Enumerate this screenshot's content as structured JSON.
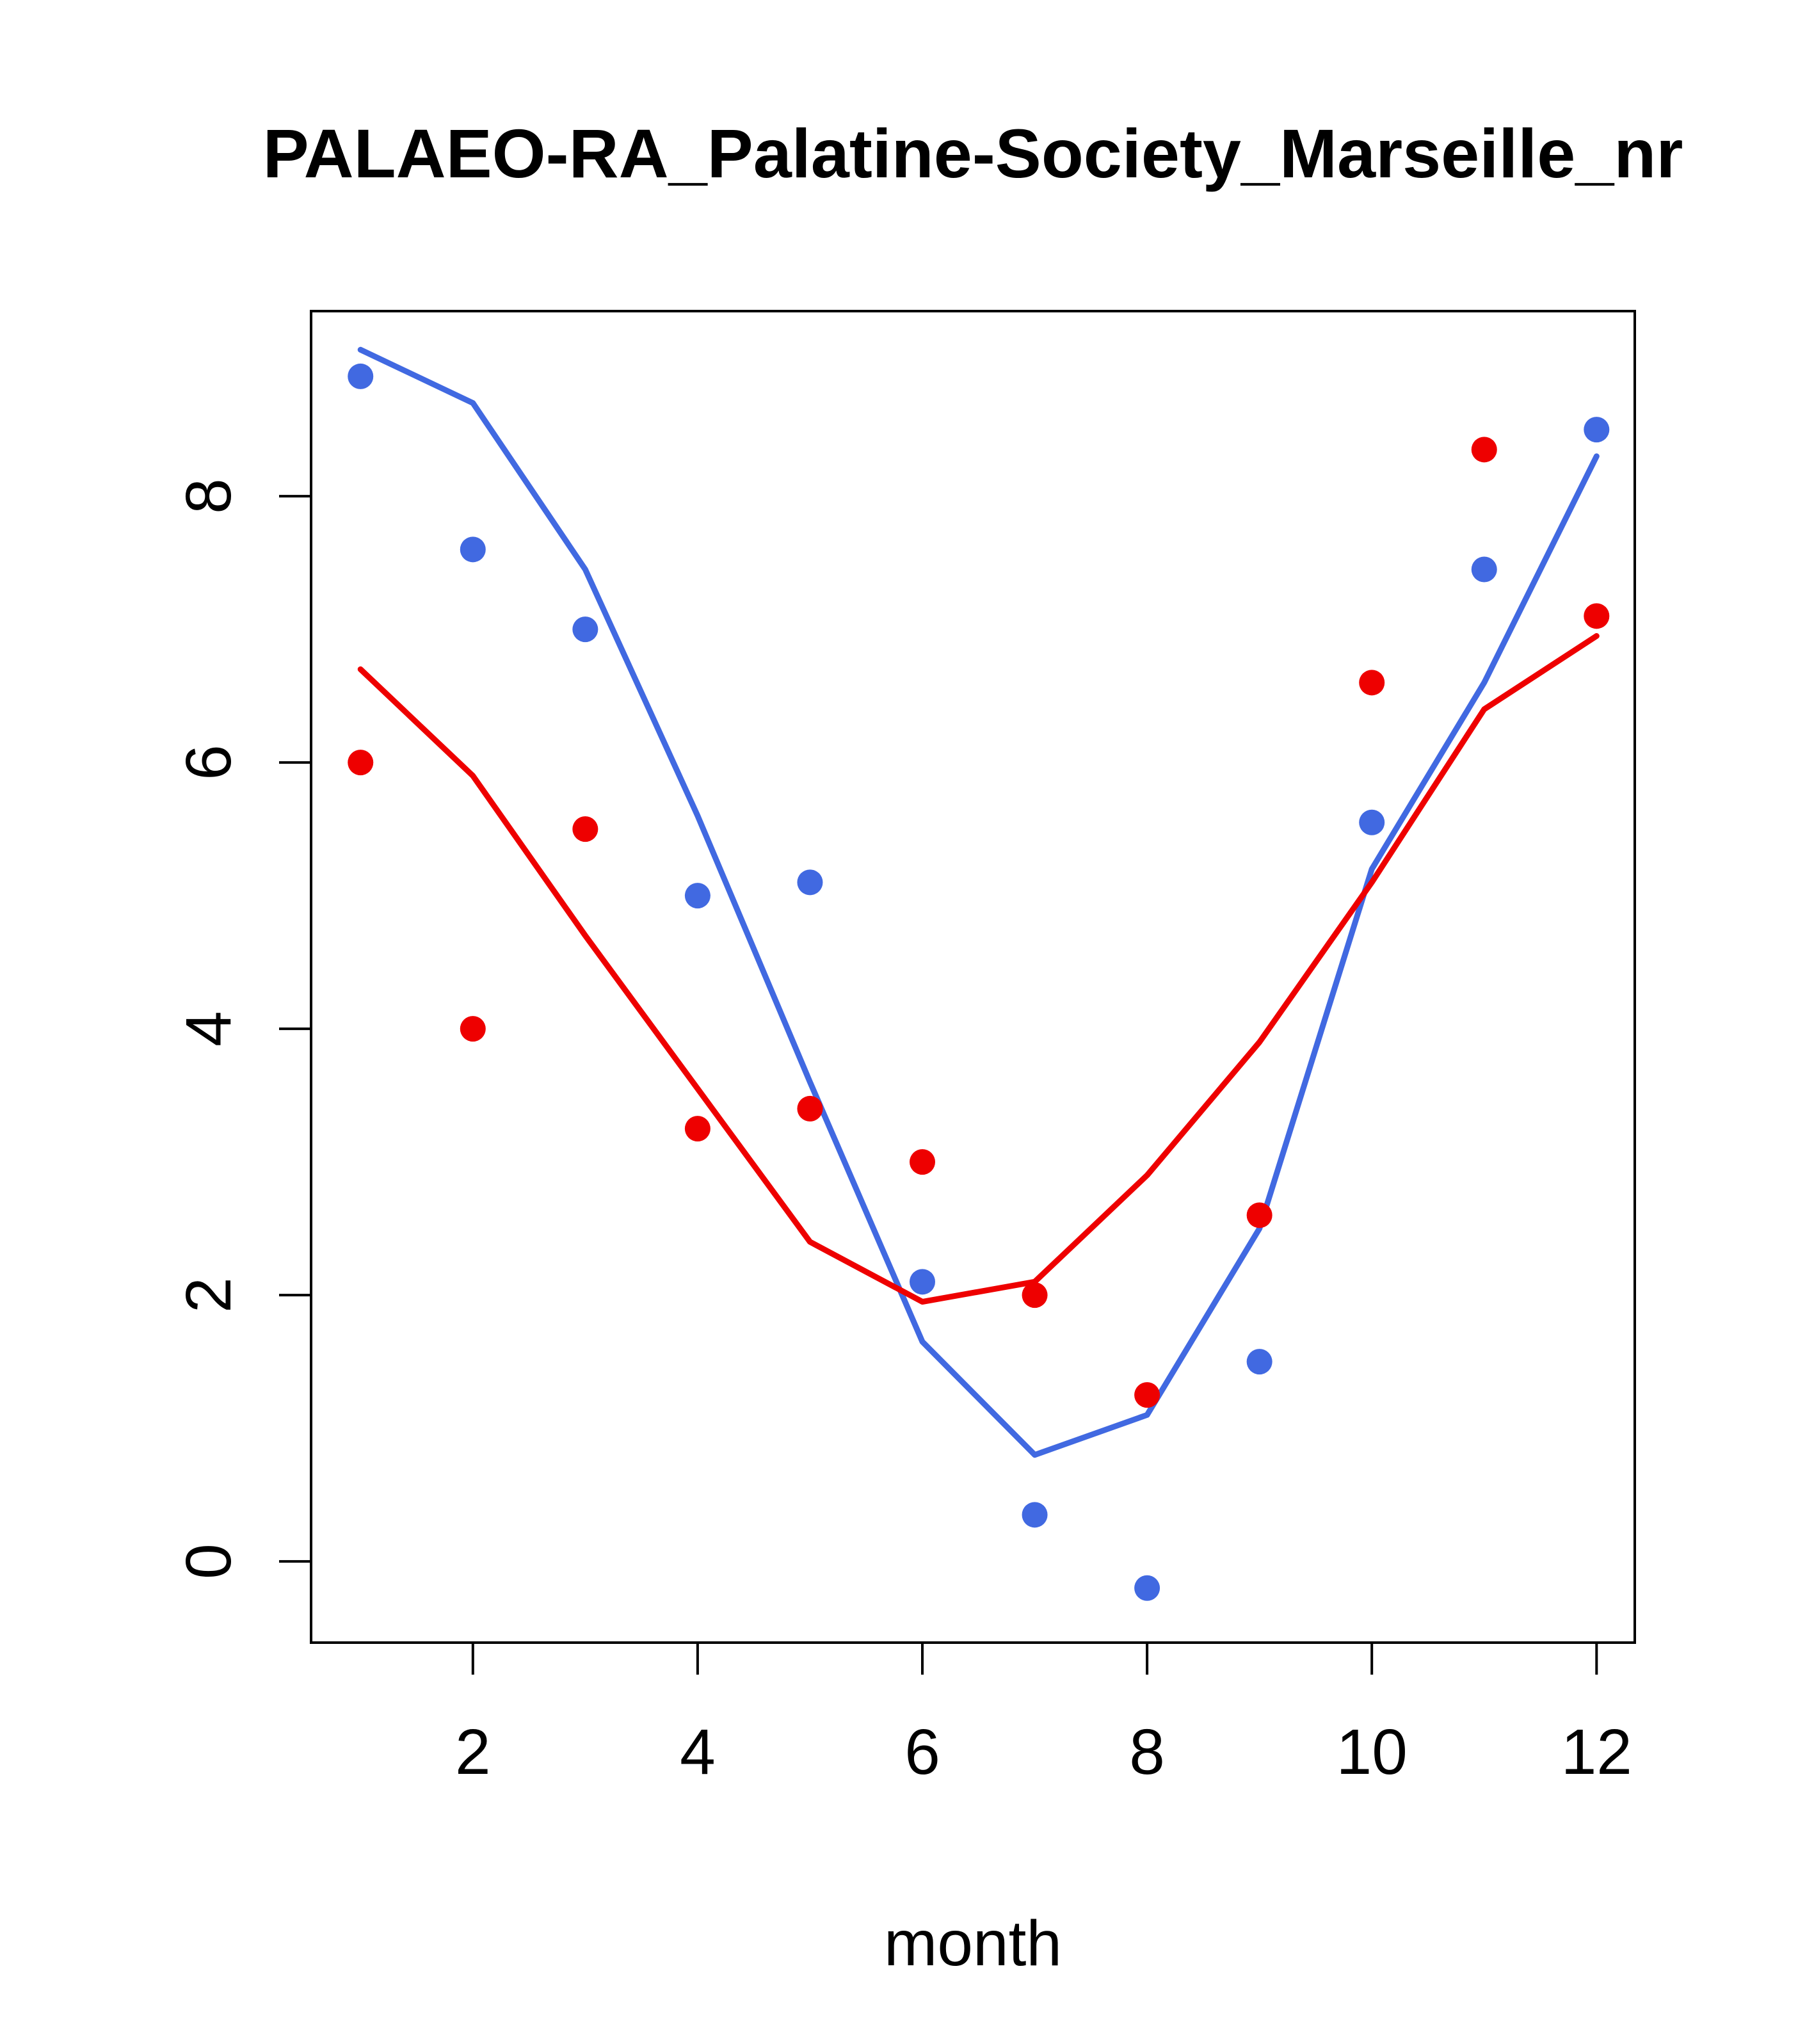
{
  "chart_data": {
    "type": "line",
    "title": "PALAEO-RA_Palatine-Society_Marseille_nr",
    "xlabel": "month",
    "ylabel": "",
    "grid": false,
    "legend": null,
    "x": [
      1,
      2,
      3,
      4,
      5,
      6,
      7,
      8,
      9,
      10,
      11,
      12
    ],
    "xticks": [
      2,
      4,
      6,
      8,
      10,
      12
    ],
    "yticks": [
      0,
      2,
      4,
      6,
      8
    ],
    "xlim": [
      0.56,
      12.34
    ],
    "ylim": [
      -0.61,
      9.39
    ],
    "colors": {
      "blue": "#4169E1",
      "red": "#EE0000"
    },
    "series": [
      {
        "name": "blue-line",
        "kind": "line",
        "color": "#4169E1",
        "values": [
          9.1,
          8.7,
          7.45,
          5.6,
          3.6,
          1.65,
          0.8,
          1.1,
          2.5,
          5.2,
          6.6,
          8.3
        ]
      },
      {
        "name": "red-line",
        "kind": "line",
        "color": "#EE0000",
        "values": [
          6.7,
          5.9,
          4.7,
          3.55,
          2.4,
          1.95,
          2.1,
          2.9,
          3.9,
          5.1,
          6.4,
          6.95
        ]
      },
      {
        "name": "blue-points",
        "kind": "scatter",
        "color": "#4169E1",
        "values": [
          8.9,
          7.6,
          7.0,
          5.0,
          5.1,
          2.1,
          0.35,
          -0.2,
          1.5,
          5.55,
          7.45,
          8.5
        ]
      },
      {
        "name": "red-points",
        "kind": "scatter",
        "color": "#EE0000",
        "values": [
          6.0,
          4.0,
          5.5,
          3.25,
          3.4,
          3.0,
          2.0,
          1.25,
          2.6,
          6.6,
          8.35,
          7.1
        ]
      }
    ]
  }
}
